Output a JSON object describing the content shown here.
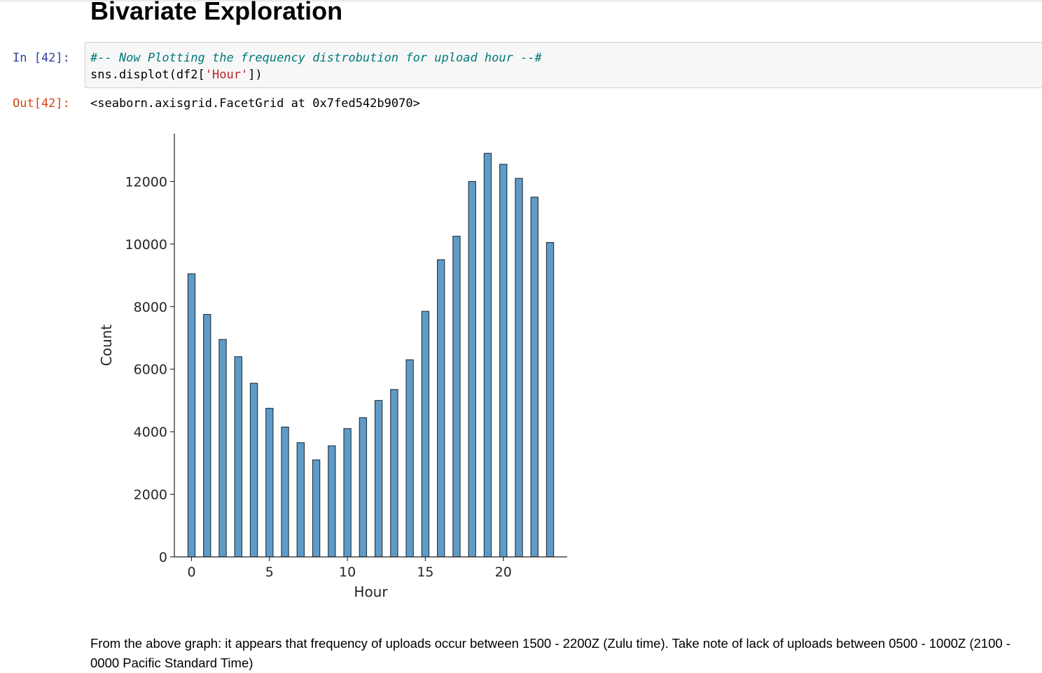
{
  "heading": "Bivariate Exploration",
  "input_cell": {
    "prompt": "In [42]:",
    "comment": "#-- Now Plotting the frequency distrobution for upload hour --#",
    "code_prefix": "sns.displot(df2[",
    "code_string": "'Hour'",
    "code_suffix": "])"
  },
  "output_cell": {
    "prompt": "Out[42]:",
    "text": "<seaborn.axisgrid.FacetGrid at 0x7fed542b9070>"
  },
  "colors": {
    "bar_fill": "#5f9bc8",
    "bar_edge": "#222f3a",
    "axis": "#222222",
    "in_prompt": "#303f9f",
    "out_prompt": "#d84315",
    "comment": "#007979",
    "string": "#ba2121"
  },
  "chart_data": {
    "type": "bar",
    "xlabel": "Hour",
    "ylabel": "Count",
    "x": [
      0,
      1,
      2,
      3,
      4,
      5,
      6,
      7,
      8,
      9,
      10,
      11,
      12,
      13,
      14,
      15,
      16,
      17,
      18,
      19,
      20,
      21,
      22,
      23
    ],
    "values": [
      9050,
      7750,
      6950,
      6400,
      5550,
      4750,
      4150,
      3650,
      3100,
      3550,
      4100,
      4450,
      5000,
      5350,
      6300,
      7850,
      9500,
      10250,
      12000,
      12900,
      12550,
      12100,
      11500,
      10050
    ],
    "xticks": [
      0,
      5,
      10,
      15,
      20
    ],
    "yticks": [
      0,
      2000,
      4000,
      6000,
      8000,
      10000,
      12000
    ],
    "xlim": [
      -1.1,
      24.1
    ],
    "ylim": [
      0,
      13530
    ],
    "grid": false,
    "legend": "none"
  },
  "note": "From the above graph: it appears that frequency of uploads occur between 1500 - 2200Z (Zulu time). Take note of lack of uploads between 0500 - 1000Z (2100 - 0000 Pacific Standard Time)"
}
